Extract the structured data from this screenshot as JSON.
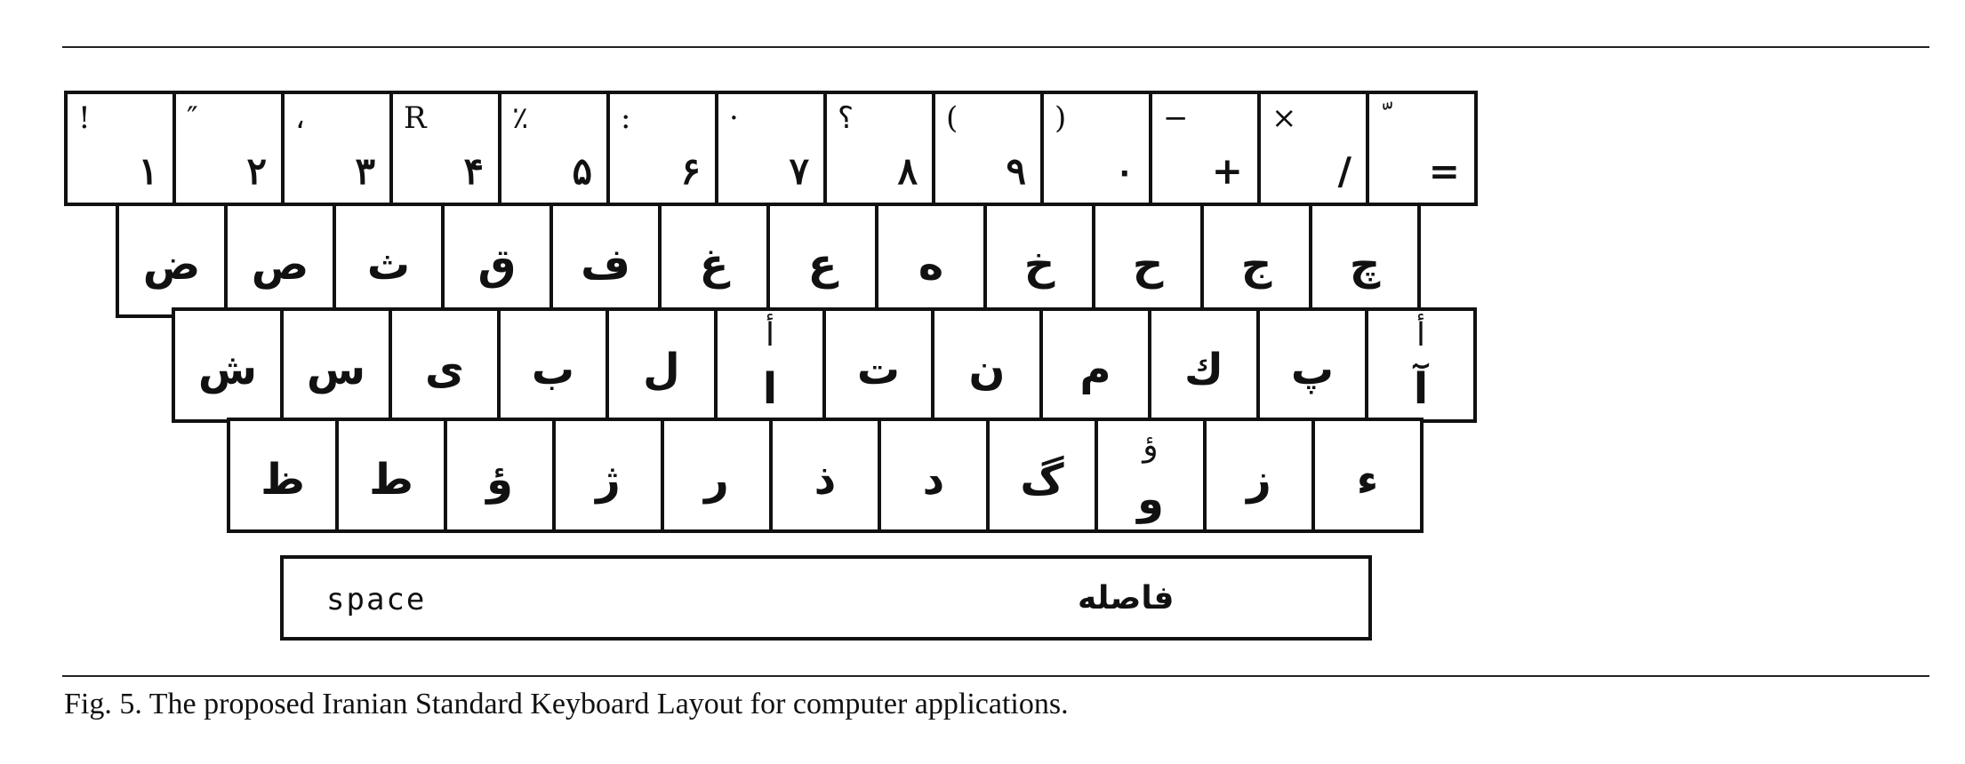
{
  "keyboard": {
    "rows": [
      [
        {
          "shift": "!",
          "base": "۱"
        },
        {
          "shift": "″",
          "base": "۲"
        },
        {
          "shift": "،",
          "base": "۳"
        },
        {
          "shift": "R",
          "base": "۴"
        },
        {
          "shift": "٪",
          "base": "۵"
        },
        {
          "shift": ":",
          "base": "۶"
        },
        {
          "shift": "·",
          "base": "۷"
        },
        {
          "shift": "؟",
          "base": "۸"
        },
        {
          "shift": "(",
          "base": "۹"
        },
        {
          "shift": ")",
          "base": "۰"
        },
        {
          "shift": "−",
          "base": "+"
        },
        {
          "shift": "×",
          "base": "/"
        },
        {
          "shift": "ّ",
          "base": "="
        }
      ],
      [
        {
          "base": "ض"
        },
        {
          "base": "ص"
        },
        {
          "base": "ث"
        },
        {
          "base": "ق"
        },
        {
          "base": "ف"
        },
        {
          "base": "غ"
        },
        {
          "base": "ع"
        },
        {
          "base": "ه"
        },
        {
          "base": "خ"
        },
        {
          "base": "ح"
        },
        {
          "base": "ج"
        },
        {
          "base": "چ"
        }
      ],
      [
        {
          "base": "ش"
        },
        {
          "base": "س"
        },
        {
          "base": "ی"
        },
        {
          "base": "ب"
        },
        {
          "base": "ل"
        },
        {
          "shift": "أ",
          "base": "ا"
        },
        {
          "base": "ت"
        },
        {
          "base": "ن"
        },
        {
          "base": "م"
        },
        {
          "base": "ك"
        },
        {
          "base": "پ"
        },
        {
          "shift": "أ",
          "base": "آ"
        }
      ],
      [
        {
          "base": "ظ"
        },
        {
          "base": "ط"
        },
        {
          "base": "ؤ"
        },
        {
          "base": "ژ"
        },
        {
          "base": "ر"
        },
        {
          "base": "ذ"
        },
        {
          "base": "د"
        },
        {
          "base": "گ"
        },
        {
          "shift": "ؤ",
          "base": "و"
        },
        {
          "base": "ز"
        },
        {
          "base": "ء"
        }
      ]
    ],
    "space_label_en": "space",
    "space_label_fa": "فاصله"
  },
  "caption": "Fig. 5. The proposed Iranian Standard Keyboard Layout for computer applications."
}
